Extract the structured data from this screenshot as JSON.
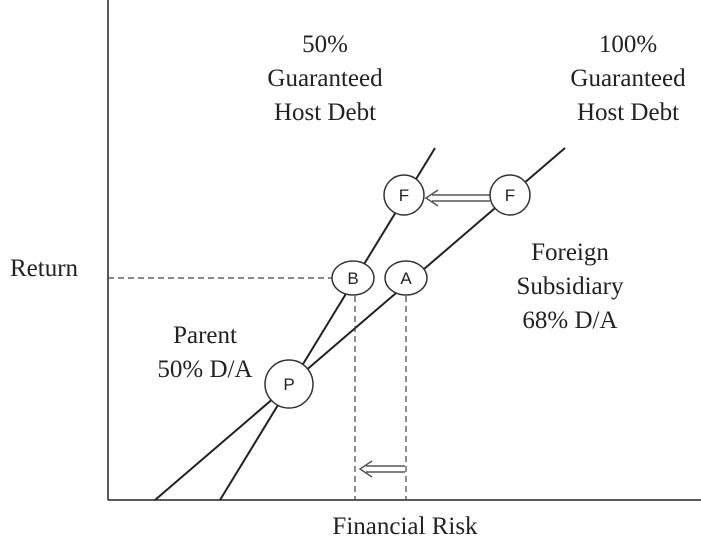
{
  "axes": {
    "y_label": "Return",
    "x_label": "Financial Risk"
  },
  "annotations": [
    {
      "lines": [
        "50%",
        "Guaranteed",
        "Host Debt"
      ]
    },
    {
      "lines": [
        "100%",
        "Guaranteed",
        "Host Debt"
      ]
    },
    {
      "lines": [
        "Foreign",
        "Subsidiary",
        "68% D/A"
      ]
    },
    {
      "lines": [
        "Parent",
        "50% D/A"
      ]
    }
  ],
  "nodes": [
    {
      "label": "F"
    },
    {
      "label": "F"
    },
    {
      "label": "B"
    },
    {
      "label": "A"
    },
    {
      "label": "P"
    }
  ]
}
